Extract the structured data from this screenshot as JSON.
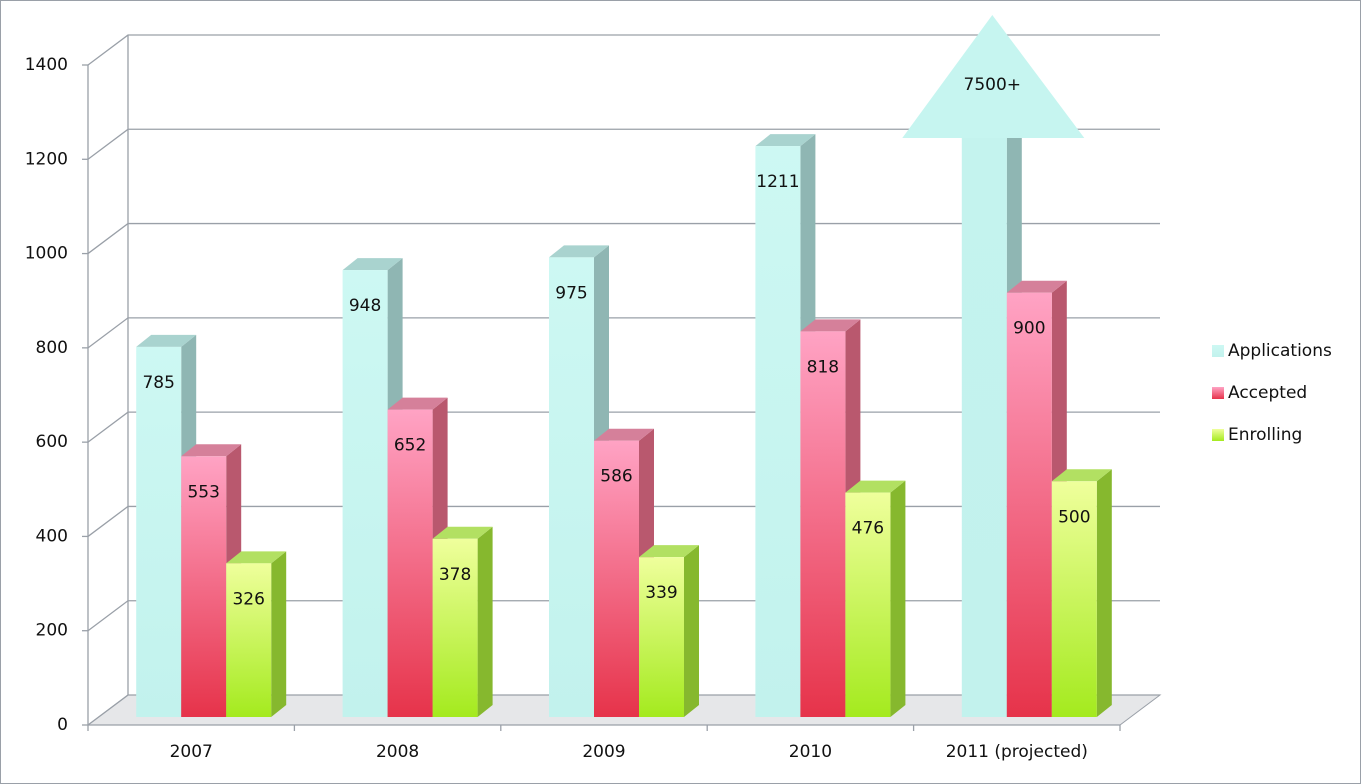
{
  "chart_data": {
    "type": "bar3d",
    "categories": [
      "2007",
      "2008",
      "2009",
      "2010",
      "2011 (projected)"
    ],
    "series": [
      {
        "name": "Applications",
        "color": "#c6f5f0",
        "values": [
          785,
          948,
          975,
          1211,
          7500
        ],
        "value_labels": [
          "785",
          "948",
          "975",
          "1211",
          "7500+"
        ]
      },
      {
        "name": "Accepted",
        "color": "#f0506e",
        "values": [
          553,
          652,
          586,
          818,
          900
        ]
      },
      {
        "name": "Enrolling",
        "color": "#b8f040",
        "values": [
          326,
          378,
          339,
          476,
          500
        ]
      }
    ],
    "ylim": [
      0,
      1400
    ],
    "yticks": [
      0,
      200,
      400,
      600,
      800,
      1000,
      1200,
      1400
    ],
    "grid": true,
    "legend": "right"
  }
}
